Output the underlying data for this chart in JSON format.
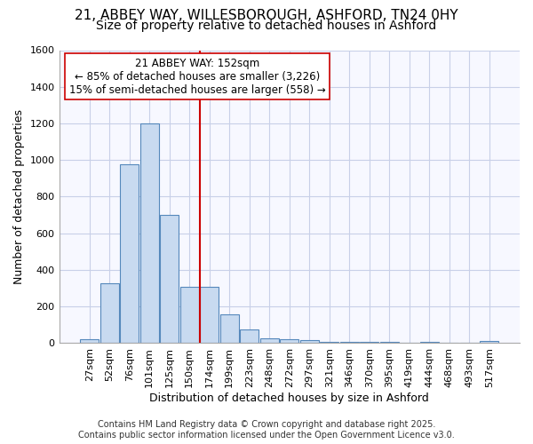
{
  "title_line1": "21, ABBEY WAY, WILLESBOROUGH, ASHFORD, TN24 0HY",
  "title_line2": "Size of property relative to detached houses in Ashford",
  "xlabel": "Distribution of detached houses by size in Ashford",
  "ylabel": "Number of detached properties",
  "bar_labels": [
    "27sqm",
    "52sqm",
    "76sqm",
    "101sqm",
    "125sqm",
    "150sqm",
    "174sqm",
    "199sqm",
    "223sqm",
    "248sqm",
    "272sqm",
    "297sqm",
    "321sqm",
    "346sqm",
    "370sqm",
    "395sqm",
    "419sqm",
    "444sqm",
    "468sqm",
    "493sqm",
    "517sqm"
  ],
  "bar_heights": [
    20,
    325,
    975,
    1200,
    700,
    310,
    310,
    155,
    75,
    25,
    20,
    15,
    5,
    5,
    5,
    5,
    0,
    5,
    0,
    0,
    10
  ],
  "bar_color": "#c8daf0",
  "bar_edge_color": "#5588bb",
  "vline_color": "#cc0000",
  "annotation_text": "21 ABBEY WAY: 152sqm\n← 85% of detached houses are smaller (3,226)\n15% of semi-detached houses are larger (558) →",
  "annotation_box_color": "#ffffff",
  "annotation_box_edge": "#cc0000",
  "ylim": [
    0,
    1600
  ],
  "yticks": [
    0,
    200,
    400,
    600,
    800,
    1000,
    1200,
    1400,
    1600
  ],
  "background_color": "#ffffff",
  "plot_bg_color": "#f7f8ff",
  "grid_color": "#c8d0e8",
  "footer_line1": "Contains HM Land Registry data © Crown copyright and database right 2025.",
  "footer_line2": "Contains public sector information licensed under the Open Government Licence v3.0.",
  "title_fontsize": 11,
  "subtitle_fontsize": 10,
  "axis_label_fontsize": 9,
  "tick_fontsize": 8,
  "annotation_fontsize": 8.5,
  "footer_fontsize": 7
}
